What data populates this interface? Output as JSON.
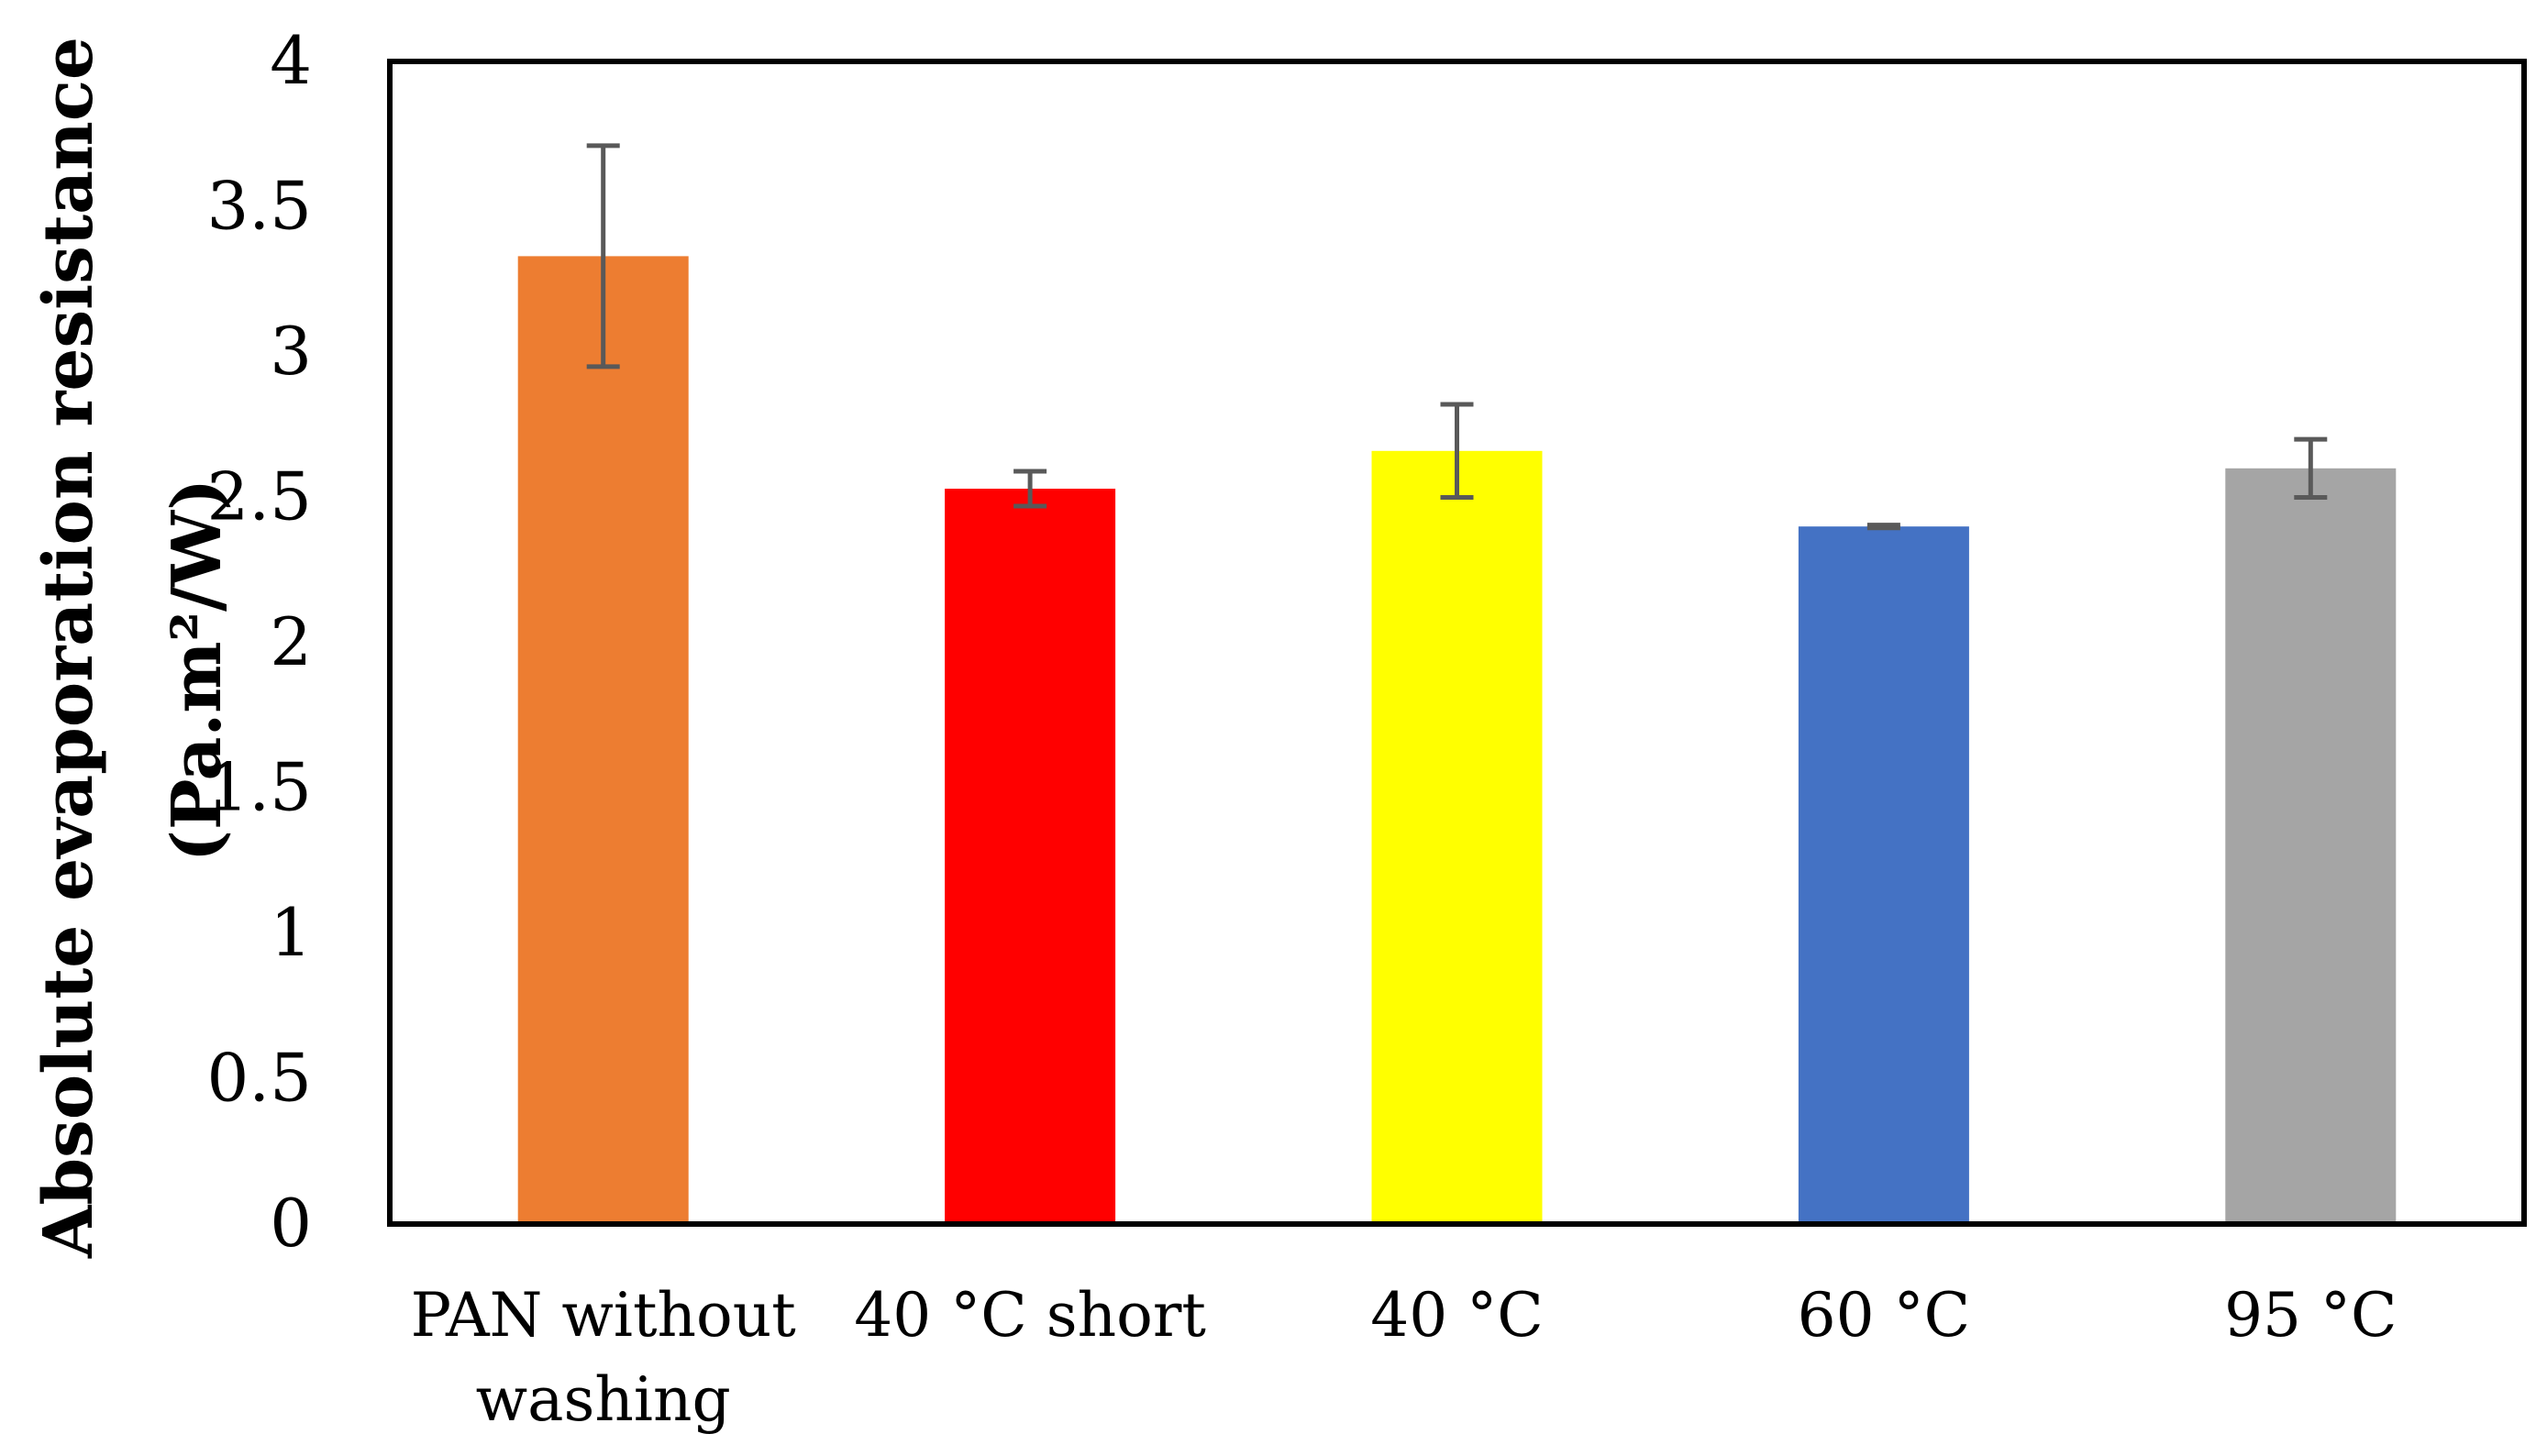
{
  "chart_data": {
    "type": "bar",
    "title": "",
    "xlabel": "",
    "ylabel_line1": "Absolute evaporation resistance",
    "ylabel_line2": "(Pa.m²/W)",
    "ylim": [
      0,
      4
    ],
    "yticks": [
      0,
      0.5,
      1,
      1.5,
      2,
      2.5,
      3,
      3.5,
      4
    ],
    "ytick_labels": [
      "0",
      "0.5",
      "1",
      "1.5",
      "2",
      "2.5",
      "3",
      "3.5",
      "4"
    ],
    "grid": false,
    "categories": [
      [
        "PAN without",
        "washing"
      ],
      [
        "40 °C short"
      ],
      [
        "40 °C"
      ],
      [
        "60 °C"
      ],
      [
        "95 °C"
      ]
    ],
    "values": [
      3.33,
      2.53,
      2.66,
      2.4,
      2.6
    ],
    "errors": [
      0.38,
      0.06,
      0.16,
      0.005,
      0.1
    ],
    "colors": [
      "#ED7D31",
      "#FF0000",
      "#FFFF00",
      "#4472C4",
      "#A5A5A5"
    ],
    "error_bar_color": "#595959"
  }
}
